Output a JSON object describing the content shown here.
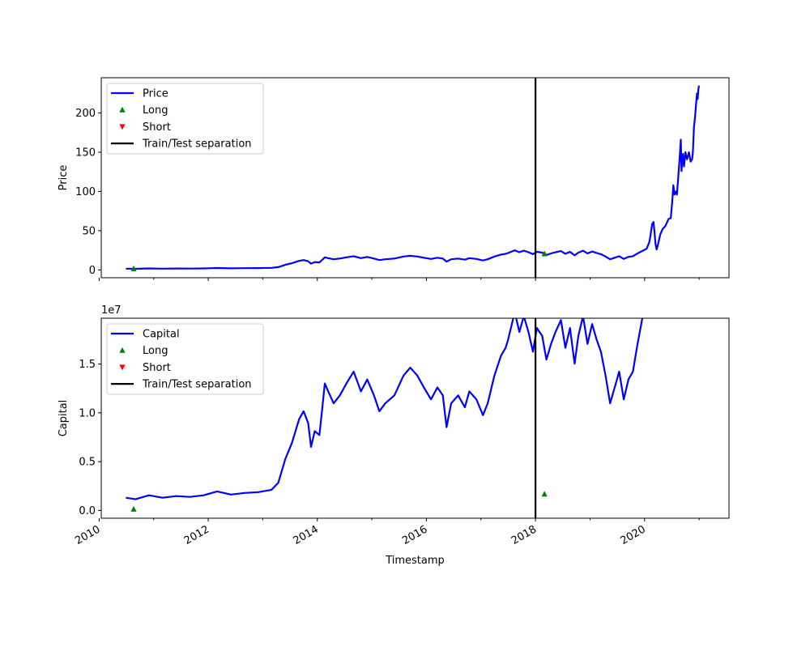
{
  "chart_data": [
    {
      "type": "line",
      "panel": "top",
      "ylabel": "Price",
      "xlabel": "",
      "xlim": [
        "2010-01-15",
        "2021-07-20"
      ],
      "ylim": [
        -10,
        245
      ],
      "yticks": [
        0,
        50,
        100,
        150,
        200
      ],
      "ytick_labels": [
        "0",
        "50",
        "100",
        "150",
        "200"
      ],
      "offset_text": "",
      "grid": false,
      "legend_position": "upper-left",
      "colors": {
        "price": "#0000ff",
        "long": "#008000",
        "short": "#ff0000",
        "separation": "#000000"
      },
      "series": [
        {
          "name": "Price",
          "style": "line",
          "points": [
            [
              "2010-06-29",
              1.6
            ],
            [
              "2010-09-01",
              1.4
            ],
            [
              "2010-12-01",
              1.9
            ],
            [
              "2011-03-01",
              1.6
            ],
            [
              "2011-06-01",
              1.8
            ],
            [
              "2011-09-01",
              1.7
            ],
            [
              "2011-12-01",
              1.9
            ],
            [
              "2012-03-01",
              2.4
            ],
            [
              "2012-06-01",
              2.0
            ],
            [
              "2012-09-01",
              2.2
            ],
            [
              "2012-12-01",
              2.3
            ],
            [
              "2013-03-01",
              2.6
            ],
            [
              "2013-04-15",
              3.5
            ],
            [
              "2013-06-01",
              6.5
            ],
            [
              "2013-07-15",
              8.5
            ],
            [
              "2013-09-01",
              11.5
            ],
            [
              "2013-10-01",
              12.5
            ],
            [
              "2013-11-01",
              11.0
            ],
            [
              "2013-11-20",
              8.0
            ],
            [
              "2013-12-15",
              10.0
            ],
            [
              "2014-01-15",
              9.5
            ],
            [
              "2014-02-01",
              12.5
            ],
            [
              "2014-02-20",
              16.0
            ],
            [
              "2014-03-15",
              15.0
            ],
            [
              "2014-04-20",
              13.5
            ],
            [
              "2014-06-01",
              14.5
            ],
            [
              "2014-07-15",
              16.0
            ],
            [
              "2014-09-01",
              17.5
            ],
            [
              "2014-10-20",
              15.0
            ],
            [
              "2014-12-01",
              16.5
            ],
            [
              "2015-01-15",
              14.5
            ],
            [
              "2015-02-20",
              12.5
            ],
            [
              "2015-04-01",
              13.5
            ],
            [
              "2015-06-01",
              14.5
            ],
            [
              "2015-08-01",
              17.0
            ],
            [
              "2015-09-15",
              18.0
            ],
            [
              "2015-11-01",
              17.0
            ],
            [
              "2015-12-15",
              15.5
            ],
            [
              "2016-02-01",
              14.0
            ],
            [
              "2016-03-15",
              15.5
            ],
            [
              "2016-04-20",
              14.5
            ],
            [
              "2016-05-15",
              10.5
            ],
            [
              "2016-06-15",
              13.5
            ],
            [
              "2016-08-01",
              14.5
            ],
            [
              "2016-09-15",
              13.0
            ],
            [
              "2016-10-15",
              15.0
            ],
            [
              "2016-12-01",
              14.0
            ],
            [
              "2017-01-15",
              12.0
            ],
            [
              "2017-02-15",
              13.5
            ],
            [
              "2017-04-01",
              17.0
            ],
            [
              "2017-05-15",
              19.5
            ],
            [
              "2017-06-15",
              20.5
            ],
            [
              "2017-07-01",
              21.5
            ],
            [
              "2017-08-15",
              25.0
            ],
            [
              "2017-09-15",
              22.5
            ],
            [
              "2017-10-15",
              24.5
            ],
            [
              "2017-11-15",
              22.5
            ],
            [
              "2017-12-15",
              20.0
            ],
            [
              "2018-01-10",
              23.0
            ],
            [
              "2018-02-15",
              22.0
            ],
            [
              "2018-03-15",
              19.0
            ],
            [
              "2018-04-15",
              21.0
            ],
            [
              "2018-05-15",
              22.5
            ],
            [
              "2018-06-20",
              24.0
            ],
            [
              "2018-07-20",
              20.5
            ],
            [
              "2018-08-20",
              23.0
            ],
            [
              "2018-09-20",
              18.5
            ],
            [
              "2018-10-15",
              22.0
            ],
            [
              "2018-11-15",
              24.5
            ],
            [
              "2018-12-15",
              21.0
            ],
            [
              "2019-01-15",
              23.5
            ],
            [
              "2019-02-15",
              21.5
            ],
            [
              "2019-03-15",
              20.0
            ],
            [
              "2019-04-15",
              17.0
            ],
            [
              "2019-05-15",
              13.5
            ],
            [
              "2019-06-15",
              15.5
            ],
            [
              "2019-07-15",
              17.5
            ],
            [
              "2019-08-15",
              14.0
            ],
            [
              "2019-09-15",
              16.5
            ],
            [
              "2019-10-15",
              17.5
            ],
            [
              "2019-11-15",
              21.0
            ],
            [
              "2019-12-15",
              24.0
            ],
            [
              "2020-01-15",
              27.0
            ],
            [
              "2020-02-01",
              35.0
            ],
            [
              "2020-02-10",
              44.0
            ],
            [
              "2020-02-20",
              58.0
            ],
            [
              "2020-03-01",
              61.0
            ],
            [
              "2020-03-08",
              47.0
            ],
            [
              "2020-03-15",
              32.0
            ],
            [
              "2020-03-22",
              26.0
            ],
            [
              "2020-04-01",
              33.0
            ],
            [
              "2020-04-15",
              45.0
            ],
            [
              "2020-05-01",
              52.0
            ],
            [
              "2020-05-20",
              56.0
            ],
            [
              "2020-06-10",
              65.0
            ],
            [
              "2020-06-25",
              66.0
            ],
            [
              "2020-07-05",
              88.0
            ],
            [
              "2020-07-12",
              108.0
            ],
            [
              "2020-07-20",
              96.0
            ],
            [
              "2020-07-28",
              100.0
            ],
            [
              "2020-08-05",
              96.0
            ],
            [
              "2020-08-15",
              120.0
            ],
            [
              "2020-08-25",
              148.0
            ],
            [
              "2020-08-31",
              166.0
            ],
            [
              "2020-09-05",
              126.0
            ],
            [
              "2020-09-10",
              140.0
            ],
            [
              "2020-09-15",
              148.0
            ],
            [
              "2020-09-22",
              132.0
            ],
            [
              "2020-10-01",
              150.0
            ],
            [
              "2020-10-12",
              141.0
            ],
            [
              "2020-10-25",
              150.0
            ],
            [
              "2020-11-05",
              138.0
            ],
            [
              "2020-11-15",
              141.0
            ],
            [
              "2020-11-20",
              150.0
            ],
            [
              "2020-11-28",
              183.0
            ],
            [
              "2020-12-05",
              195.0
            ],
            [
              "2020-12-12",
              212.0
            ],
            [
              "2020-12-18",
              225.0
            ],
            [
              "2020-12-22",
              218.0
            ],
            [
              "2020-12-27",
              230.0
            ],
            [
              "2020-12-31",
              235.0
            ]
          ]
        },
        {
          "name": "Long",
          "style": "marker-triangle-up",
          "points": [
            [
              "2010-08-20",
              1.5
            ],
            [
              "2018-03-02",
              20.5
            ]
          ]
        },
        {
          "name": "Short",
          "style": "marker-triangle-down",
          "points": []
        },
        {
          "name": "Train/Test separation",
          "style": "vline",
          "x": "2018-01-01"
        }
      ]
    },
    {
      "type": "line",
      "panel": "bottom",
      "ylabel": "Capital",
      "xlabel": "Timestamp",
      "xlim": [
        "2010-01-15",
        "2021-07-20"
      ],
      "ylim": [
        -0.08,
        1.97
      ],
      "yticks": [
        0.0,
        0.5,
        1.0,
        1.5
      ],
      "ytick_labels": [
        "0.0",
        "0.5",
        "1.0",
        "1.5"
      ],
      "offset_text": "1e7",
      "grid": false,
      "legend_position": "upper-left",
      "x_tick_labels": [
        "2010",
        "2012",
        "2014",
        "2016",
        "2018",
        "2020"
      ],
      "colors": {
        "capital": "#0000ff",
        "long": "#008000",
        "short": "#ff0000",
        "separation": "#000000"
      },
      "series": [
        {
          "name": "Capital",
          "style": "line",
          "scale_from_price": 0.0813
        },
        {
          "name": "Long",
          "style": "marker-triangle-up",
          "points": [
            [
              "2010-08-20",
              0.012
            ],
            [
              "2018-03-02",
              0.167
            ]
          ]
        },
        {
          "name": "Short",
          "style": "marker-triangle-down",
          "points": []
        },
        {
          "name": "Train/Test separation",
          "style": "vline",
          "x": "2018-01-01"
        }
      ]
    }
  ]
}
